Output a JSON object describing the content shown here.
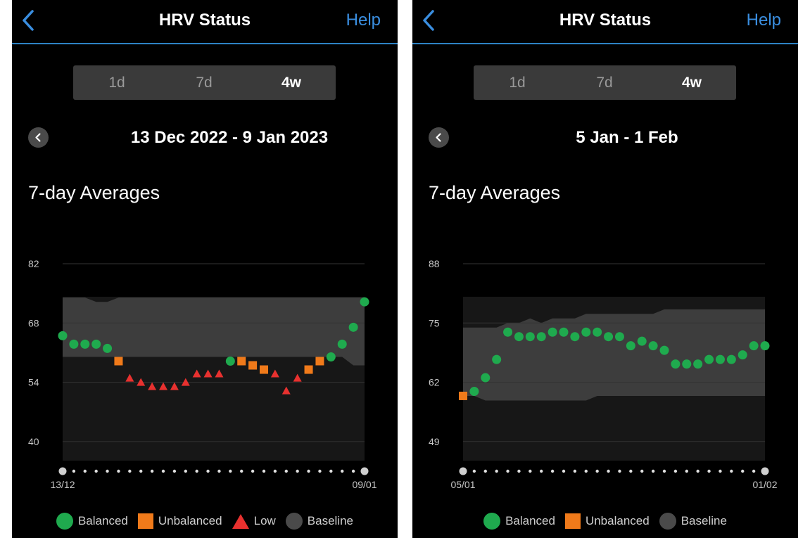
{
  "colors": {
    "balanced": "#1faa4e",
    "unbalanced": "#f07a1a",
    "low": "#e8312f",
    "baseline": "#4a4a4a",
    "accent": "#3a8ee0"
  },
  "panels": [
    {
      "header": {
        "title": "HRV Status",
        "help": "Help"
      },
      "tabs": [
        "1d",
        "7d",
        "4w"
      ],
      "active_tab": 2,
      "date_range": "13 Dec 2022 - 9 Jan 2023",
      "section_title": "7-day Averages",
      "legend": [
        {
          "label": "Balanced",
          "shape": "circle",
          "color": "#1faa4e"
        },
        {
          "label": "Unbalanced",
          "shape": "square",
          "color": "#f07a1a"
        },
        {
          "label": "Low",
          "shape": "triangle",
          "color": "#e8312f"
        },
        {
          "label": "Baseline",
          "shape": "circle",
          "color": "#4a4a4a"
        }
      ],
      "chart_data": {
        "type": "scatter",
        "title": "7-day Averages",
        "x_start_label": "13/12",
        "x_end_label": "09/01",
        "yticks": [
          40,
          54,
          68,
          82
        ],
        "ylim": [
          35.5,
          82
        ],
        "grid": true,
        "legend_placement": "bottom",
        "x": [
          "13/12",
          "14/12",
          "15/12",
          "16/12",
          "17/12",
          "18/12",
          "19/12",
          "20/12",
          "21/12",
          "22/12",
          "23/12",
          "24/12",
          "25/12",
          "26/12",
          "27/12",
          "28/12",
          "29/12",
          "30/12",
          "31/12",
          "01/01",
          "02/01",
          "03/01",
          "04/01",
          "05/01",
          "06/01",
          "07/01",
          "08/01",
          "09/01"
        ],
        "baseline_upper": [
          74,
          74,
          74,
          73,
          73,
          74,
          74,
          74,
          74,
          74,
          74,
          74,
          74,
          74,
          74,
          74,
          74,
          74,
          74,
          74,
          74,
          74,
          74,
          74,
          74,
          74,
          74,
          74
        ],
        "baseline_lower": [
          60,
          60,
          60,
          60,
          60,
          60,
          60,
          60,
          60,
          60,
          60,
          60,
          60,
          60,
          60,
          60,
          60,
          60,
          60,
          60,
          60,
          60,
          60,
          60,
          60,
          60,
          58,
          58
        ],
        "values": [
          65,
          63,
          63,
          63,
          62,
          59,
          55,
          54,
          53,
          53,
          53,
          54,
          56,
          56,
          56,
          59,
          59,
          58,
          57,
          56,
          52,
          55,
          57,
          59,
          60,
          63,
          67,
          73
        ],
        "status": [
          "balanced",
          "balanced",
          "balanced",
          "balanced",
          "balanced",
          "unbalanced",
          "low",
          "low",
          "low",
          "low",
          "low",
          "low",
          "low",
          "low",
          "low",
          "balanced",
          "unbalanced",
          "unbalanced",
          "unbalanced",
          "low",
          "low",
          "low",
          "unbalanced",
          "unbalanced",
          "balanced",
          "balanced",
          "balanced",
          "balanced"
        ]
      }
    },
    {
      "header": {
        "title": "HRV Status",
        "help": "Help"
      },
      "tabs": [
        "1d",
        "7d",
        "4w"
      ],
      "active_tab": 2,
      "date_range": "5 Jan - 1 Feb",
      "section_title": "7-day Averages",
      "legend": [
        {
          "label": "Balanced",
          "shape": "circle",
          "color": "#1faa4e"
        },
        {
          "label": "Unbalanced",
          "shape": "square",
          "color": "#f07a1a"
        },
        {
          "label": "Baseline",
          "shape": "circle",
          "color": "#4a4a4a"
        }
      ],
      "chart_data": {
        "type": "scatter",
        "title": "7-day Averages",
        "x_start_label": "05/01",
        "x_end_label": "01/02",
        "yticks": [
          49,
          62,
          75,
          88
        ],
        "ylim": [
          44.8,
          88
        ],
        "grid": true,
        "legend_placement": "bottom",
        "x": [
          "05/01",
          "06/01",
          "07/01",
          "08/01",
          "09/01",
          "10/01",
          "11/01",
          "12/01",
          "13/01",
          "14/01",
          "15/01",
          "16/01",
          "17/01",
          "18/01",
          "19/01",
          "20/01",
          "21/01",
          "22/01",
          "23/01",
          "24/01",
          "25/01",
          "26/01",
          "27/01",
          "28/01",
          "29/01",
          "30/01",
          "31/01",
          "01/02"
        ],
        "baseline_upper": [
          74,
          74,
          74,
          74,
          75,
          75,
          76,
          75,
          76,
          76,
          76,
          77,
          77,
          77,
          77,
          77,
          77,
          77,
          78,
          78,
          78,
          78,
          78,
          78,
          78,
          78,
          78,
          78
        ],
        "baseline_lower": [
          59,
          59,
          58,
          58,
          58,
          58,
          58,
          58,
          58,
          58,
          58,
          58,
          59,
          59,
          59,
          59,
          59,
          59,
          59,
          59,
          59,
          59,
          59,
          59,
          59,
          59,
          59,
          59
        ],
        "values": [
          59,
          60,
          63,
          67,
          73,
          72,
          72,
          72,
          73,
          73,
          72,
          73,
          73,
          72,
          72,
          70,
          71,
          70,
          69,
          66,
          66,
          66,
          67,
          67,
          67,
          68,
          70,
          70
        ],
        "status": [
          "unbalanced",
          "balanced",
          "balanced",
          "balanced",
          "balanced",
          "balanced",
          "balanced",
          "balanced",
          "balanced",
          "balanced",
          "balanced",
          "balanced",
          "balanced",
          "balanced",
          "balanced",
          "balanced",
          "balanced",
          "balanced",
          "balanced",
          "balanced",
          "balanced",
          "balanced",
          "balanced",
          "balanced",
          "balanced",
          "balanced",
          "balanced",
          "balanced"
        ]
      }
    }
  ]
}
